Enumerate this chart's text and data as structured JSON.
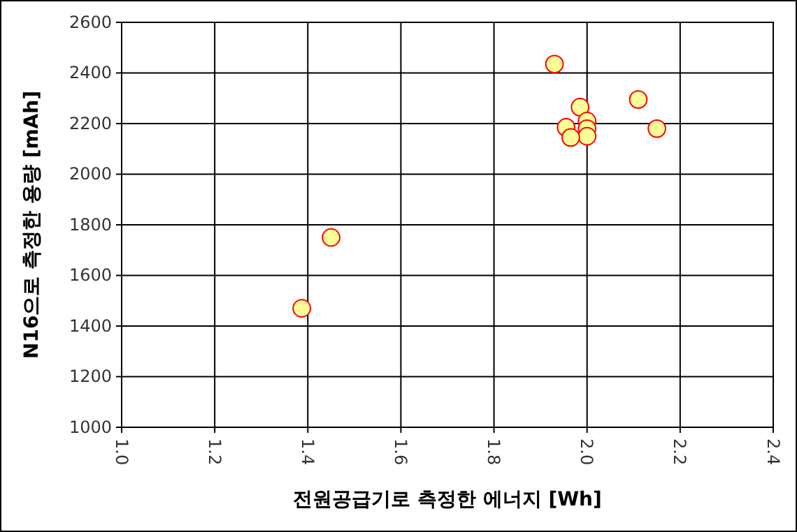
{
  "chart_data": {
    "type": "scatter",
    "xlabel": "전원공급기로 측정한 에너지 [Wh]",
    "ylabel": "N16으로 측정한 용량 [mAh]",
    "xlim": [
      1.0,
      2.4
    ],
    "xticks": [
      {
        "value": 1.0,
        "label": "1.0"
      },
      1.2,
      1.4,
      1.6,
      1.8,
      {
        "value": 2.0,
        "label": "2.0"
      },
      2.2,
      2.4
    ],
    "ylim": [
      1000,
      2600
    ],
    "yticks": [
      1000,
      1200,
      1400,
      1600,
      1800,
      2000,
      2200,
      2400,
      2600
    ],
    "grid": true,
    "marker": "circle",
    "series": [
      {
        "color": "#ffff99",
        "x": [
          1.93,
          2.11,
          2.15,
          1.985,
          2.0,
          2.0,
          2.0,
          1.955,
          1.965,
          1.45,
          1.387
        ],
        "values": [
          2435,
          2295,
          2180,
          2265,
          2210,
          2180,
          2150,
          2185,
          2145,
          1750,
          1470
        ]
      }
    ]
  }
}
